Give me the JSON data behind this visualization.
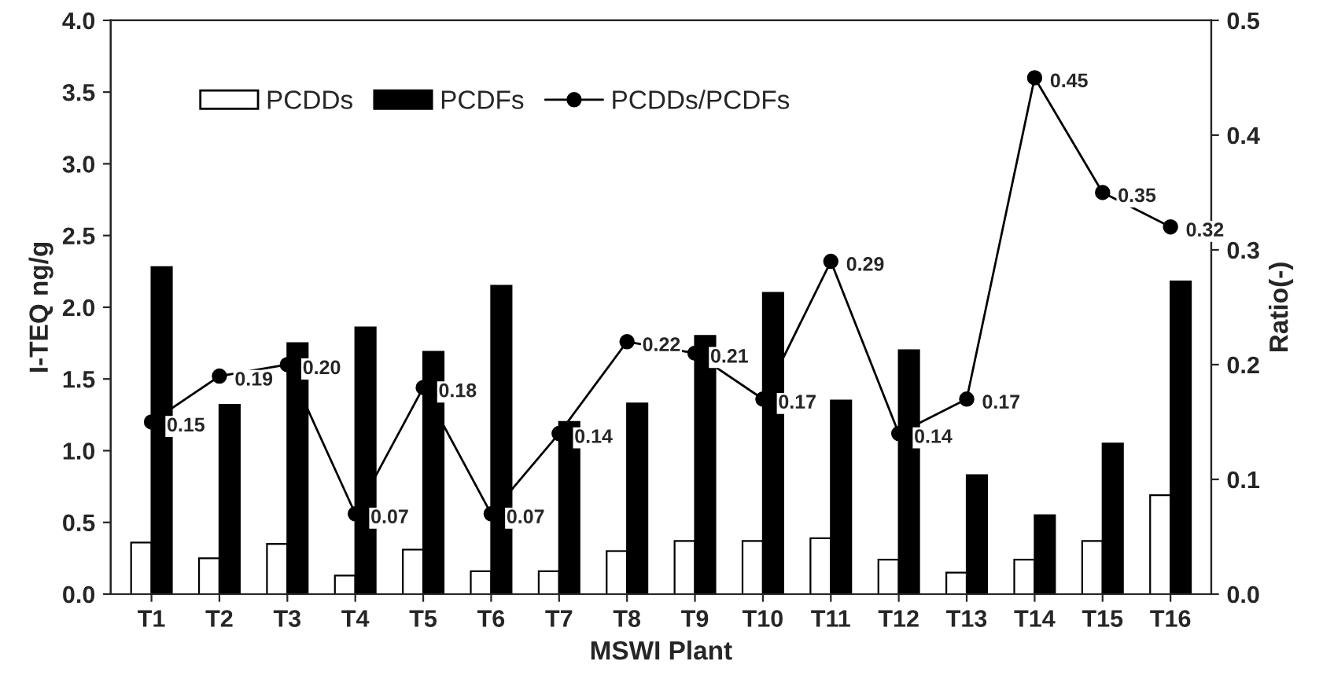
{
  "chart_data": {
    "type": "bar",
    "xlabel": "MSWI Plant",
    "ylabel": "I-TEQ ng/g",
    "y2label": "Ratio(-)",
    "categories": [
      "T1",
      "T2",
      "T3",
      "T4",
      "T5",
      "T6",
      "T7",
      "T8",
      "T9",
      "T10",
      "T11",
      "T12",
      "T13",
      "T14",
      "T15",
      "T16"
    ],
    "series": [
      {
        "name": "PCDDs",
        "color": "#ffffff",
        "values": [
          0.36,
          0.25,
          0.35,
          0.13,
          0.31,
          0.16,
          0.16,
          0.3,
          0.37,
          0.37,
          0.39,
          0.24,
          0.15,
          0.24,
          0.37,
          0.69
        ]
      },
      {
        "name": "PCDFs",
        "color": "#000000",
        "values": [
          2.28,
          1.32,
          1.75,
          1.86,
          1.69,
          2.15,
          1.2,
          1.33,
          1.8,
          2.1,
          1.35,
          1.7,
          0.83,
          0.55,
          1.05,
          2.18
        ]
      },
      {
        "name": "PCDDs/PCDFs",
        "type": "line",
        "axis": "y2",
        "color": "#000000",
        "marker": "circle",
        "values": [
          0.15,
          0.19,
          0.2,
          0.07,
          0.18,
          0.07,
          0.14,
          0.22,
          0.21,
          0.17,
          0.29,
          0.14,
          0.17,
          0.45,
          0.35,
          0.32
        ],
        "value_labels": [
          "0.15",
          "0.19",
          "0.20",
          "0.07",
          "0.18",
          "0.07",
          "0.14",
          "0.22",
          "0.21",
          "0.17",
          "0.29",
          "0.14",
          "0.17",
          "0.45",
          "0.35",
          "0.32"
        ]
      }
    ],
    "ylim": [
      0,
      4
    ],
    "yticks": [
      {
        "value": 0,
        "label": "0.0"
      },
      {
        "value": 0.5,
        "label": "0.5"
      },
      {
        "value": 1,
        "label": "1.0"
      },
      {
        "value": 1.5,
        "label": "1.5"
      },
      {
        "value": 2,
        "label": "2.0"
      },
      {
        "value": 2.5,
        "label": "2.5"
      },
      {
        "value": 3,
        "label": "3.0"
      },
      {
        "value": 3.5,
        "label": "3.5"
      },
      {
        "value": 4,
        "label": "4.0"
      }
    ],
    "y2lim": [
      0,
      0.5
    ],
    "y2ticks": [
      {
        "value": 0,
        "label": "0.0"
      },
      0.1,
      0.2,
      0.3,
      0.4,
      0.5
    ],
    "legend": "top left",
    "grid": false
  }
}
